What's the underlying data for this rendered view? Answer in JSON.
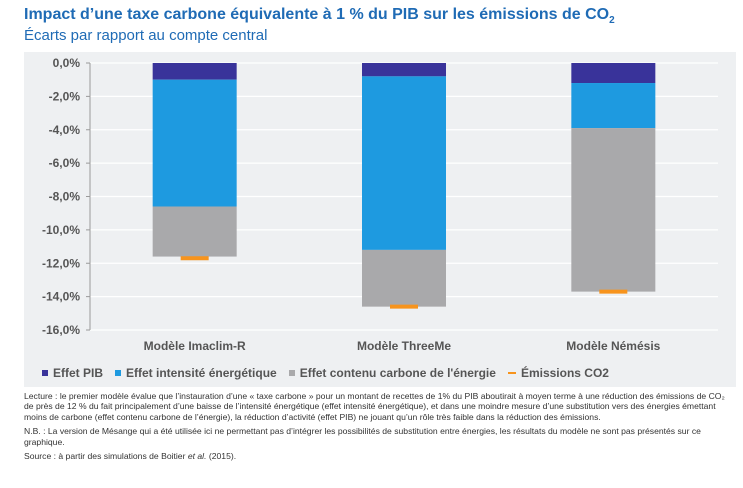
{
  "header": {
    "title_main": "Impact d’une taxe carbone équivalente à 1 % du PIB sur les émissions de CO",
    "title_sub": "2",
    "subtitle": "Écarts par rapport au compte central"
  },
  "chart_data": {
    "type": "bar",
    "stacked": true,
    "categories": [
      "Modèle  Imaclim-R",
      "Modèle ThreeMe",
      "Modèle Némésis"
    ],
    "ylim": [
      -16,
      0
    ],
    "yticks": [
      0,
      -2,
      -4,
      -6,
      -8,
      -10,
      -12,
      -14,
      -16
    ],
    "ytick_labels": [
      "0,0%",
      "-2,0%",
      "-4,0%",
      "-6,0%",
      "-8,0%",
      "-10,0%",
      "-12,0%",
      "-14,0%",
      "-16,0%"
    ],
    "grid": true,
    "legend_position": "bottom",
    "series": [
      {
        "name": "Effet PIB",
        "color": "#39339a",
        "values": [
          -1.0,
          -0.8,
          -1.2
        ]
      },
      {
        "name": "Effet intensité énergétique",
        "color": "#1e9ae0",
        "values": [
          -7.6,
          -10.4,
          -2.7
        ]
      },
      {
        "name": "Effet contenu carbone de l'énergie",
        "color": "#a9a9ab",
        "values": [
          -3.0,
          -3.4,
          -9.8
        ]
      }
    ],
    "line_series": {
      "name": "Émissions CO2",
      "color": "#f7941d",
      "values": [
        -11.7,
        -14.6,
        -13.7
      ]
    }
  },
  "notes": {
    "lecture": "Lecture : le premier modèle évalue que l’instauration d’une « taxe carbone » pour un montant de recettes de 1% du PIB aboutirait à moyen terme à une réduction des émissions de CO₂ de près de 12 % du fait principalement d’une baisse de l’intensité énergétique (effet intensité énergétique), et dans une moindre mesure d’une substitution vers des énergies émettant moins de carbone (effet contenu carbone de l’énergie), la réduction d’activité (effet PIB) ne jouant qu’un rôle très faible dans la réduction des émissions.",
    "nb": "N.B. : La version de Mésange qui a été utilisée ici ne permettant pas d’intégrer les possibilités de substitution entre énergies, les résultats du modèle ne sont pas présentés sur ce graphique.",
    "source_prefix": "Source : à partir des simulations de Boitier ",
    "source_italic": "et al.",
    "source_suffix": " (2015)."
  }
}
